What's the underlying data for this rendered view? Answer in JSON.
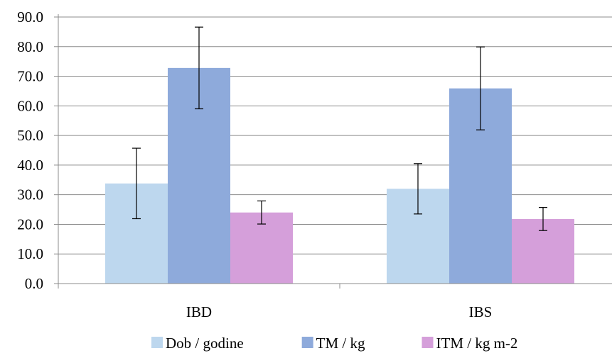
{
  "chart_data": {
    "type": "bar",
    "categories": [
      "IBD",
      "IBS"
    ],
    "series": [
      {
        "name": "Dob / godine",
        "color": "#BDD7EE",
        "values": [
          33.8,
          32.0
        ],
        "error": [
          11.9,
          8.5
        ]
      },
      {
        "name": "TM / kg",
        "color": "#8EAADB",
        "values": [
          72.8,
          65.9
        ],
        "error": [
          13.8,
          14.0
        ]
      },
      {
        "name": "ITM / kg m-2",
        "color": "#D59FDA",
        "values": [
          24.0,
          21.8
        ],
        "error": [
          3.9,
          3.9
        ]
      }
    ],
    "ylim": [
      0,
      90
    ],
    "yticks": [
      "0.0",
      "10.0",
      "20.0",
      "30.0",
      "40.0",
      "50.0",
      "60.0",
      "70.0",
      "80.0",
      "90.0"
    ],
    "grid": true,
    "legend_position": "bottom",
    "gridline_color": "#8c8c8c"
  }
}
